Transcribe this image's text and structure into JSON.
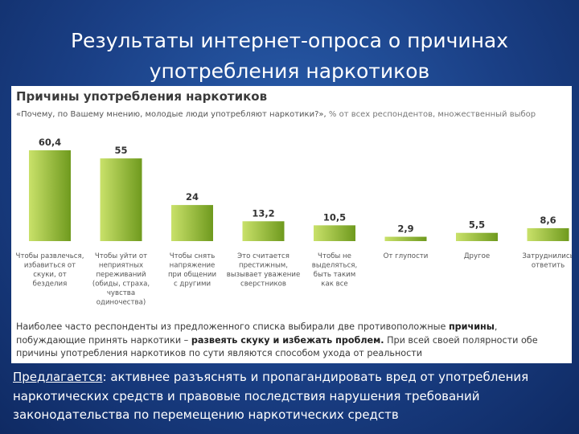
{
  "slide": {
    "title_line1": "Результаты интернет-опроса о причинах",
    "title_line2": "употребления наркотиков"
  },
  "chart_data": {
    "type": "bar",
    "title": "Причины употребления наркотиков",
    "subtitle": "«Почему, по Вашему мнению, молодые люди употребляют наркотики?»,",
    "subtitle_note": "% от всех респондентов, множественный выбор",
    "categories": [
      "Чтобы развлечься, избавиться от скуки, от безделия",
      "Чтобы уйти от неприятных переживаний (обиды, страха, чувства одиночества)",
      "Чтобы снять напряжение при общении с другими",
      "Это считается престижным, вызывает уважение сверстников",
      "Чтобы не выделяться, быть таким как все",
      "От глупости",
      "Другое",
      "Затруднились ответить"
    ],
    "category_lines": [
      [
        "Чтобы развлечься,",
        "избавиться от",
        "скуки, от",
        "безделия"
      ],
      [
        "Чтобы уйти от",
        "неприятных",
        "переживаний",
        "(обиды, страха,",
        "чувства",
        "одиночества)"
      ],
      [
        "Чтобы снять",
        "напряжение",
        "при общении",
        "с другими"
      ],
      [
        "Это считается",
        "престижным,",
        "вызывает уважение",
        "сверстников"
      ],
      [
        "Чтобы не",
        "выделяться,",
        "быть таким",
        "как все"
      ],
      [
        "От глупости"
      ],
      [
        "Другое"
      ],
      [
        "Затруднились",
        "ответить"
      ]
    ],
    "values": [
      60.4,
      55,
      24,
      13.2,
      10.5,
      2.9,
      5.5,
      8.6
    ],
    "value_labels": [
      "60,4",
      "55",
      "24",
      "13,2",
      "10,5",
      "2,9",
      "5,5",
      "8,6"
    ],
    "ylim": [
      0,
      60.4
    ],
    "grid": false,
    "colors": {
      "bar_light": "#c9e16a",
      "bar_dark": "#6f9a1e"
    }
  },
  "note": {
    "part1": "Наиболее часто респонденты из предложенного списка выбирали две противоположные",
    "bold1": "причины",
    "part2": ", побуждающие принять наркотики –",
    "bold2": "развеять скуку и избежать проблем.",
    "part3": "При всей своей полярности обе причины употребления наркотиков по сути являются способом ухода от реальности"
  },
  "bottom": {
    "lead": "Предлагается",
    "text": ": активнее разъяснять и пропагандировать вред от употребления наркотических средств и правовые последствия нарушения требований законодательства по перемещению наркотических средств"
  }
}
